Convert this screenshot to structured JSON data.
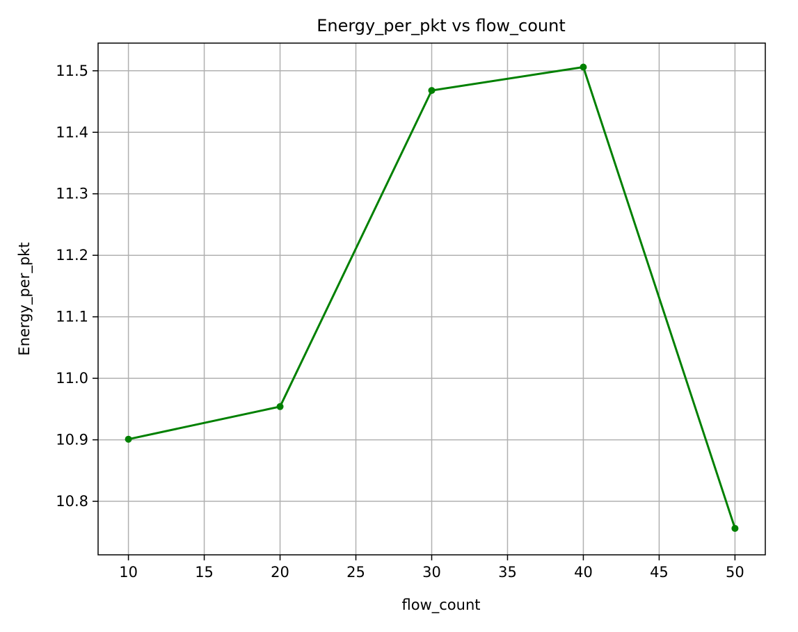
{
  "chart_data": {
    "type": "line",
    "title": "Energy_per_pkt vs flow_count",
    "xlabel": "flow_count",
    "ylabel": "Energy_per_pkt",
    "xlim": [
      8,
      52
    ],
    "ylim": [
      10.713,
      11.545
    ],
    "x_ticks": [
      10,
      15,
      20,
      25,
      30,
      35,
      40,
      45,
      50
    ],
    "y_ticks": [
      10.8,
      10.9,
      11.0,
      11.1,
      11.2,
      11.3,
      11.4,
      11.5
    ],
    "x_tick_labels": [
      "10",
      "15",
      "20",
      "25",
      "30",
      "35",
      "40",
      "45",
      "50"
    ],
    "y_tick_labels": [
      "10.8",
      "10.9",
      "11.0",
      "11.1",
      "11.2",
      "11.3",
      "11.4",
      "11.5"
    ],
    "grid": true,
    "legend": "none",
    "series": [
      {
        "color": "#008000",
        "marker": "circle",
        "x": [
          10,
          20,
          30,
          40,
          50
        ],
        "y": [
          10.901,
          10.954,
          11.468,
          11.506,
          10.756
        ]
      }
    ]
  }
}
